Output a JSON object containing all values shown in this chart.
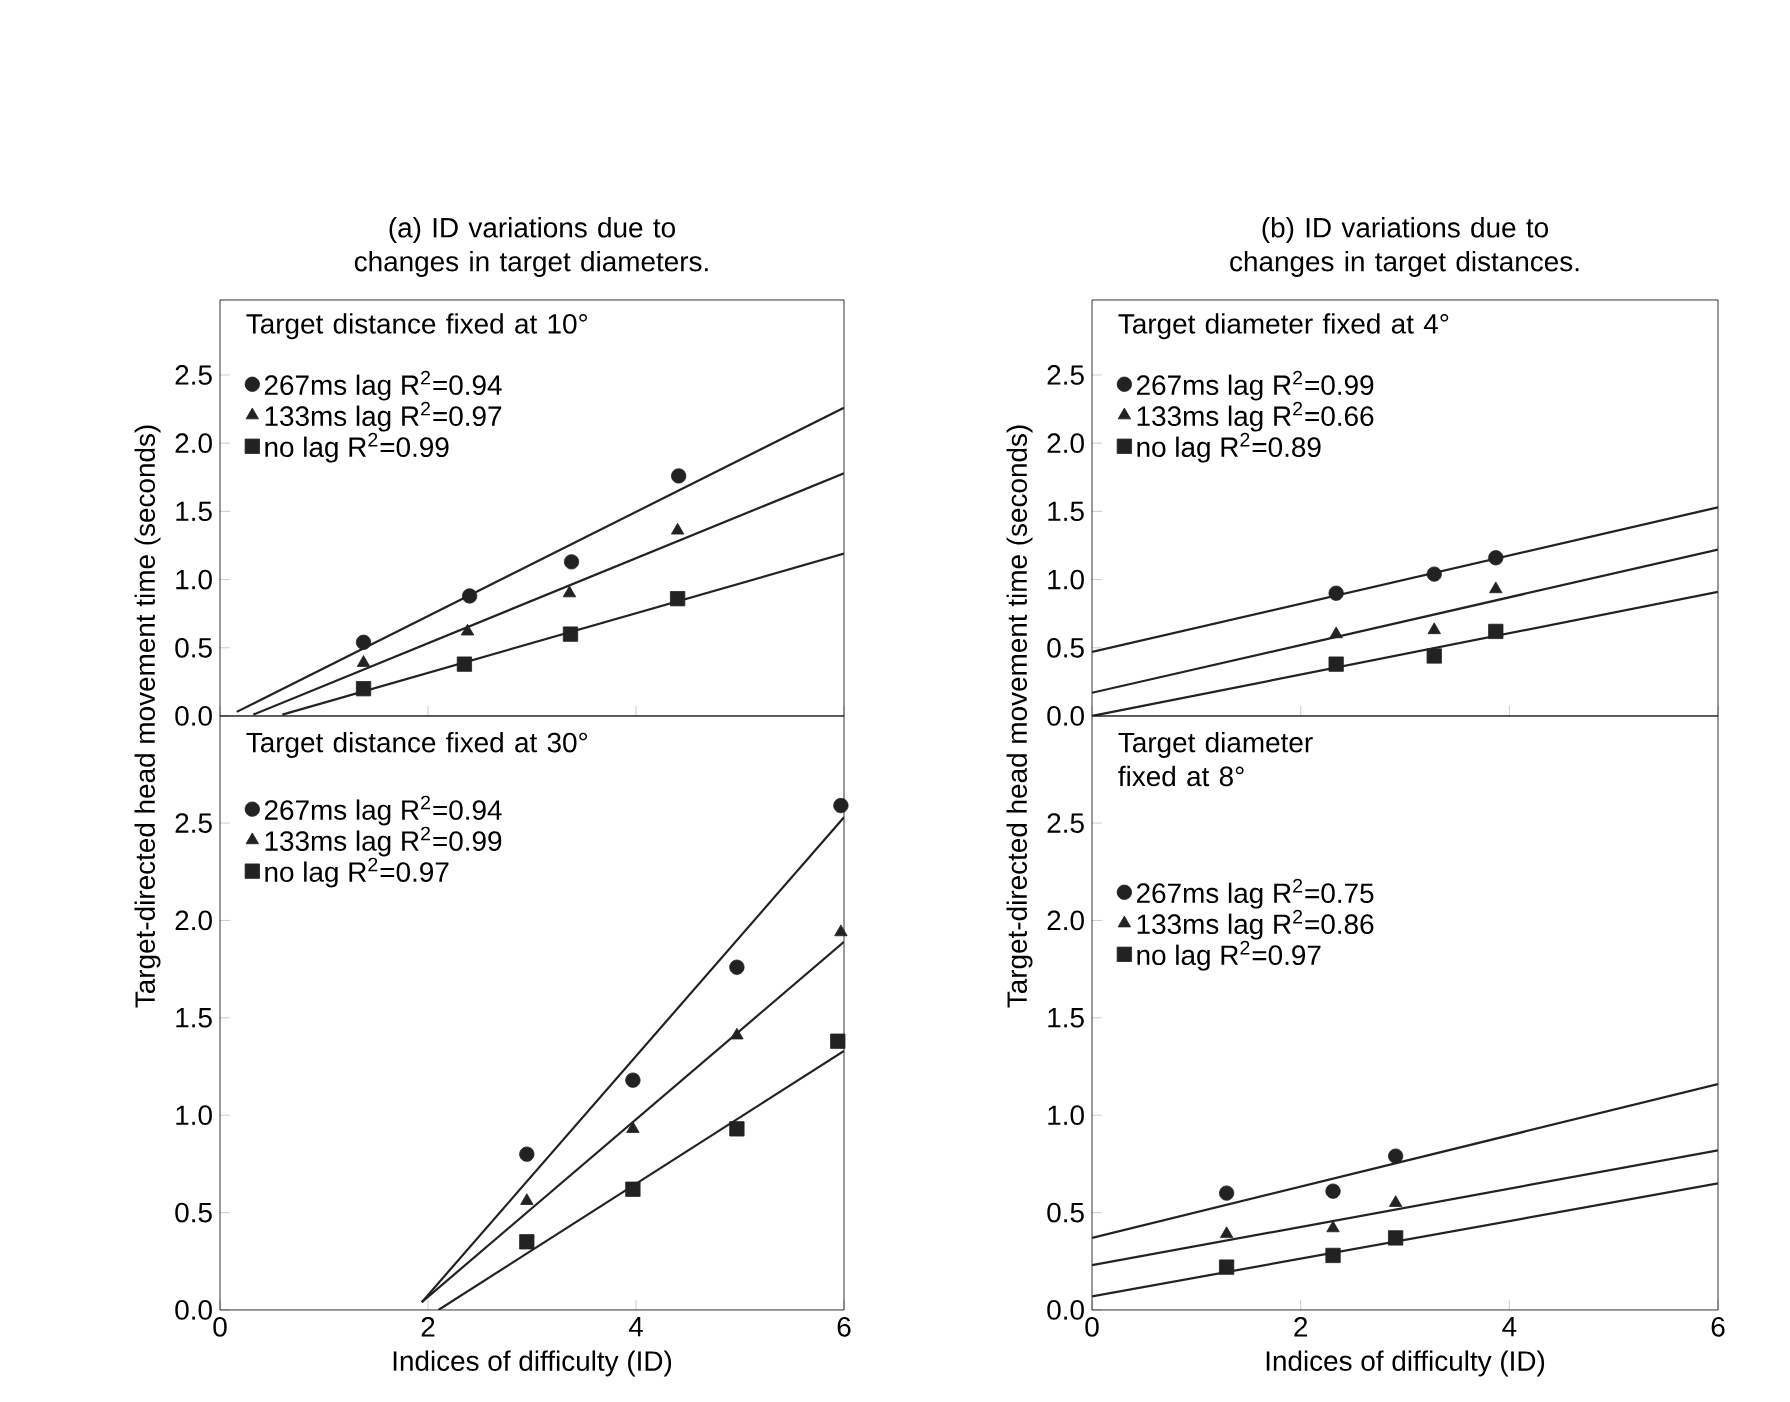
{
  "chart_data": [
    {
      "type": "scatter",
      "title": "(a) ID variations due to changes in target diameters.",
      "subtitle": "Target distance fixed at 10°",
      "ylabel": "Target-directed head movement time (seconds)",
      "xlim": [
        0,
        6
      ],
      "ylim": [
        0,
        3.05
      ],
      "xticks": [
        0,
        2,
        4,
        6
      ],
      "yticks": [
        {
          "value": 0,
          "label": "0.0"
        },
        {
          "value": 0.5,
          "label": "0.5"
        },
        {
          "value": 1,
          "label": "1.0"
        },
        {
          "value": 1.5,
          "label": "1.5"
        },
        {
          "value": 2,
          "label": "2.0"
        },
        {
          "value": 2.5,
          "label": "2.5"
        }
      ],
      "tick_labels": "y",
      "legend": "top left",
      "grid": false,
      "series": [
        {
          "name": "267ms lag R$^{2}$=0.94",
          "marker": "circle",
          "color": "#222222",
          "x": [
            1.38,
            2.4,
            3.38,
            4.41
          ],
          "values": [
            0.54,
            0.88,
            1.13,
            1.76
          ]
        },
        {
          "name": "133ms lag R$^{2}$=0.97",
          "marker": "triangle",
          "color": "#222222",
          "x": [
            1.38,
            2.38,
            3.36,
            4.4
          ],
          "values": [
            0.39,
            0.62,
            0.9,
            1.36
          ]
        },
        {
          "name": "no lag R$^{2}$=0.99",
          "marker": "square",
          "color": "#222222",
          "x": [
            1.38,
            2.35,
            3.37,
            4.4
          ],
          "values": [
            0.2,
            0.38,
            0.6,
            0.86
          ]
        },
        {
          "type": "line",
          "marker": "none",
          "color": "#222222",
          "x": [
            0.16,
            6
          ],
          "values": [
            0.03,
            2.26
          ]
        },
        {
          "type": "line",
          "marker": "none",
          "color": "#222222",
          "x": [
            0.32,
            6
          ],
          "values": [
            0.01,
            1.78
          ]
        },
        {
          "type": "line",
          "marker": "none",
          "color": "#222222",
          "x": [
            0.6,
            6
          ],
          "values": [
            0.01,
            1.19
          ]
        }
      ]
    },
    {
      "type": "scatter",
      "subtitle": "Target distance fixed at 30°",
      "xlabel": "Indices of difficulty (ID)",
      "xlim": [
        0,
        6
      ],
      "ylim": [
        0,
        3.05
      ],
      "xticks": [
        0,
        2,
        4,
        6
      ],
      "yticks": [
        {
          "value": 0,
          "label": "0.0"
        },
        {
          "value": 0.5,
          "label": "0.5"
        },
        {
          "value": 1,
          "label": "1.0"
        },
        {
          "value": 1.5,
          "label": "1.5"
        },
        {
          "value": 2,
          "label": "2.0"
        },
        {
          "value": 2.5,
          "label": "2.5"
        }
      ],
      "legend": "top left",
      "grid": false,
      "series": [
        {
          "name": "267ms lag R$^{2}$=0.94",
          "marker": "circle",
          "color": "#222222",
          "x": [
            2.95,
            3.97,
            4.97,
            5.97
          ],
          "values": [
            0.8,
            1.18,
            1.76,
            2.59
          ]
        },
        {
          "name": "133ms lag R$^{2}$=0.99",
          "marker": "triangle",
          "color": "#222222",
          "x": [
            2.95,
            3.97,
            4.97,
            5.97
          ],
          "values": [
            0.56,
            0.93,
            1.41,
            1.94
          ]
        },
        {
          "name": "no lag R$^{2}$=0.97",
          "marker": "square",
          "color": "#222222",
          "x": [
            2.95,
            3.97,
            4.97,
            5.94
          ],
          "values": [
            0.35,
            0.62,
            0.93,
            1.38
          ]
        },
        {
          "type": "line",
          "marker": "none",
          "color": "#222222",
          "x": [
            1.94,
            6
          ],
          "values": [
            0.04,
            2.53
          ]
        },
        {
          "type": "line",
          "marker": "none",
          "color": "#222222",
          "x": [
            1.94,
            6
          ],
          "values": [
            0.04,
            1.89
          ]
        },
        {
          "type": "line",
          "marker": "none",
          "color": "#222222",
          "x": [
            2.1,
            6
          ],
          "values": [
            0,
            1.33
          ]
        }
      ]
    },
    {
      "type": "scatter",
      "title": "(b) ID variations due to changes in target distances.",
      "subtitle": "Target diameter fixed at 4°",
      "ylabel": "Target-directed head movement time (seconds)",
      "xlim": [
        0,
        6
      ],
      "ylim": [
        0,
        3.05
      ],
      "xticks": [
        0,
        2,
        4,
        6
      ],
      "yticks": [
        {
          "value": 0,
          "label": "0.0"
        },
        {
          "value": 0.5,
          "label": "0.5"
        },
        {
          "value": 1,
          "label": "1.0"
        },
        {
          "value": 1.5,
          "label": "1.5"
        },
        {
          "value": 2,
          "label": "2.0"
        },
        {
          "value": 2.5,
          "label": "2.5"
        }
      ],
      "tick_labels": "y",
      "legend": "top left",
      "grid": false,
      "series": [
        {
          "name": "267ms lag R$^{2}$=0.99",
          "marker": "circle",
          "color": "#222222",
          "x": [
            2.34,
            3.28,
            3.87
          ],
          "values": [
            0.9,
            1.04,
            1.16
          ]
        },
        {
          "name": "133ms lag R$^{2}$=0.66",
          "marker": "triangle",
          "color": "#222222",
          "x": [
            2.34,
            3.28,
            3.87
          ],
          "values": [
            0.6,
            0.63,
            0.93
          ]
        },
        {
          "name": "no lag R$^{2}$=0.89",
          "marker": "square",
          "color": "#222222",
          "x": [
            2.34,
            3.28,
            3.87
          ],
          "values": [
            0.38,
            0.44,
            0.62
          ]
        },
        {
          "type": "line",
          "marker": "none",
          "color": "#222222",
          "x": [
            0,
            6
          ],
          "values": [
            0.47,
            1.53
          ]
        },
        {
          "type": "line",
          "marker": "none",
          "color": "#222222",
          "x": [
            0,
            6
          ],
          "values": [
            0.17,
            1.22
          ]
        },
        {
          "type": "line",
          "marker": "none",
          "color": "#222222",
          "x": [
            0,
            6
          ],
          "values": [
            0,
            0.91
          ]
        }
      ]
    },
    {
      "type": "scatter",
      "subtitle": "Target diameter fixed at 8°",
      "xlabel": "Indices of difficulty (ID)",
      "xlim": [
        0,
        6
      ],
      "ylim": [
        0,
        3.05
      ],
      "xticks": [
        0,
        2,
        4,
        6
      ],
      "yticks": [
        {
          "value": 0,
          "label": "0.0"
        },
        {
          "value": 0.5,
          "label": "0.5"
        },
        {
          "value": 1,
          "label": "1.0"
        },
        {
          "value": 1.5,
          "label": "1.5"
        },
        {
          "value": 2,
          "label": "2.0"
        },
        {
          "value": 2.5,
          "label": "2.5"
        }
      ],
      "legend": "top left",
      "grid": false,
      "series": [
        {
          "name": "267ms lag R$^{2}$=0.75",
          "marker": "circle",
          "color": "#222222",
          "x": [
            1.29,
            2.31,
            2.91
          ],
          "values": [
            0.6,
            0.61,
            0.79
          ]
        },
        {
          "name": "133ms lag R$^{2}$=0.86",
          "marker": "triangle",
          "color": "#222222",
          "x": [
            1.29,
            2.31,
            2.91
          ],
          "values": [
            0.39,
            0.42,
            0.55
          ]
        },
        {
          "name": "no lag R$^{2}$=0.97",
          "marker": "square",
          "color": "#222222",
          "x": [
            1.29,
            2.31,
            2.91
          ],
          "values": [
            0.22,
            0.28,
            0.37
          ]
        },
        {
          "type": "line",
          "marker": "none",
          "color": "#222222",
          "x": [
            0,
            6
          ],
          "values": [
            0.37,
            1.16
          ]
        },
        {
          "type": "line",
          "marker": "none",
          "color": "#222222",
          "x": [
            0,
            6
          ],
          "values": [
            0.23,
            0.82
          ]
        },
        {
          "type": "line",
          "marker": "none",
          "color": "#222222",
          "x": [
            0,
            6
          ],
          "values": [
            0.07,
            0.65
          ]
        }
      ]
    }
  ]
}
